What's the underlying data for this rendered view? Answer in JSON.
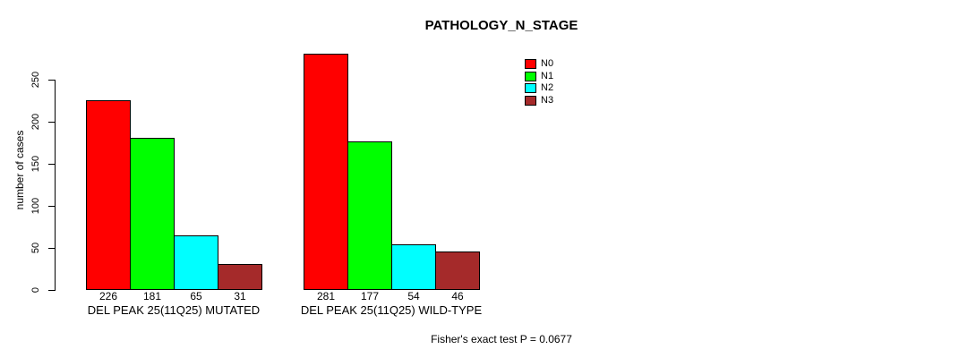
{
  "chart_data": {
    "type": "bar",
    "title": "PATHOLOGY_N_STAGE",
    "ylabel": "number of cases",
    "xlabel": "",
    "categories": [
      "N0",
      "N1",
      "N2",
      "N3"
    ],
    "series_colors": [
      "#FF0000",
      "#00FF00",
      "#00FFFF",
      "#A52A2A"
    ],
    "groups": [
      {
        "label": "DEL PEAK 25(11Q25) MUTATED",
        "values": [
          226,
          181,
          65,
          31
        ]
      },
      {
        "label": "DEL PEAK 25(11Q25) WILD-TYPE",
        "values": [
          281,
          177,
          54,
          46
        ]
      }
    ],
    "y_ticks": [
      0,
      50,
      100,
      150,
      200,
      250
    ],
    "ylim": [
      0,
      281
    ],
    "bar_value_labels_shown": true,
    "grid": false,
    "legend": {
      "position": "top-right-inside",
      "entries": [
        {
          "label": "N0",
          "color": "#FF0000"
        },
        {
          "label": "N1",
          "color": "#00FF00"
        },
        {
          "label": "N2",
          "color": "#00FFFF"
        },
        {
          "label": "N3",
          "color": "#A52A2A"
        }
      ]
    },
    "annotation": "Fisher's exact test P = 0.0677"
  }
}
